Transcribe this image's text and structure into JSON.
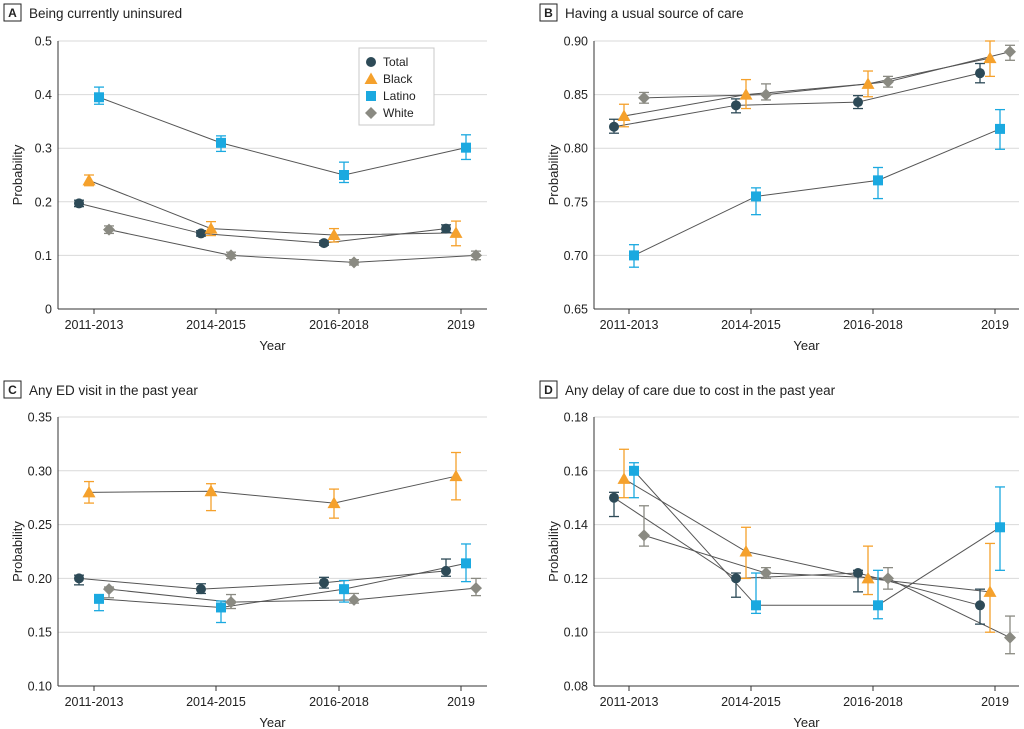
{
  "colors": {
    "Total": "#2d4a57",
    "Black": "#f5a12c",
    "Latino": "#1ba9e0",
    "White": "#8a8a82",
    "connector": "#555555",
    "grid": "#d9d9d9"
  },
  "chart_data": [
    {
      "type": "line",
      "letter": "A",
      "title": "Being currently uninsured",
      "xlabel": "Year",
      "ylabel": "Probability",
      "categories": [
        "2011-2013",
        "2014-2015",
        "2016-2018",
        "2019"
      ],
      "ylim": [
        0,
        0.5
      ],
      "yticks": [
        0,
        0.1,
        0.2,
        0.3,
        0.4,
        0.5
      ],
      "ytick_labels": [
        "0",
        "0.1",
        "0.2",
        "0.3",
        "0.4",
        "0.5"
      ],
      "grid": true,
      "legend": {
        "placement": "top-right",
        "entries": [
          "Total",
          "Black",
          "Latino",
          "White"
        ]
      },
      "series": [
        {
          "name": "Total",
          "marker": "circle",
          "values": [
            0.197,
            0.141,
            0.123,
            0.15
          ],
          "lower": [
            0.191,
            0.136,
            0.119,
            0.143
          ],
          "upper": [
            0.203,
            0.146,
            0.127,
            0.157
          ]
        },
        {
          "name": "Black",
          "marker": "triangle",
          "values": [
            0.24,
            0.15,
            0.138,
            0.142
          ],
          "lower": [
            0.23,
            0.137,
            0.125,
            0.118
          ],
          "upper": [
            0.25,
            0.163,
            0.15,
            0.164
          ]
        },
        {
          "name": "Latino",
          "marker": "square",
          "values": [
            0.395,
            0.31,
            0.25,
            0.301
          ],
          "lower": [
            0.382,
            0.294,
            0.236,
            0.279
          ],
          "upper": [
            0.414,
            0.323,
            0.274,
            0.325
          ]
        },
        {
          "name": "White",
          "marker": "diamond",
          "values": [
            0.148,
            0.1,
            0.087,
            0.1
          ],
          "lower": [
            0.141,
            0.094,
            0.082,
            0.092
          ],
          "upper": [
            0.155,
            0.106,
            0.092,
            0.108
          ]
        }
      ]
    },
    {
      "type": "line",
      "letter": "B",
      "title": "Having a usual source of care",
      "xlabel": "Year",
      "ylabel": "Probability",
      "categories": [
        "2011-2013",
        "2014-2015",
        "2016-2018",
        "2019"
      ],
      "ylim": [
        0.65,
        0.9
      ],
      "yticks": [
        0.65,
        0.7,
        0.75,
        0.8,
        0.85,
        0.9
      ],
      "ytick_labels": [
        "0.65",
        "0.70",
        "0.75",
        "0.80",
        "0.85",
        "0.90"
      ],
      "grid": true,
      "series": [
        {
          "name": "Total",
          "marker": "circle",
          "values": [
            0.82,
            0.84,
            0.843,
            0.87
          ],
          "lower": [
            0.814,
            0.833,
            0.837,
            0.861
          ],
          "upper": [
            0.827,
            0.846,
            0.849,
            0.879
          ]
        },
        {
          "name": "Black",
          "marker": "triangle",
          "values": [
            0.83,
            0.85,
            0.86,
            0.884
          ],
          "lower": [
            0.82,
            0.837,
            0.848,
            0.867
          ],
          "upper": [
            0.841,
            0.864,
            0.872,
            0.9
          ]
        },
        {
          "name": "Latino",
          "marker": "square",
          "values": [
            0.7,
            0.755,
            0.77,
            0.818
          ],
          "lower": [
            0.689,
            0.738,
            0.753,
            0.799
          ],
          "upper": [
            0.71,
            0.763,
            0.782,
            0.836
          ]
        },
        {
          "name": "White",
          "marker": "diamond",
          "values": [
            0.847,
            0.85,
            0.862,
            0.89
          ],
          "lower": [
            0.842,
            0.845,
            0.857,
            0.882
          ],
          "upper": [
            0.852,
            0.86,
            0.867,
            0.896
          ]
        }
      ]
    },
    {
      "type": "line",
      "letter": "C",
      "title": "Any ED visit in the past year",
      "xlabel": "Year",
      "ylabel": "Probability",
      "categories": [
        "2011-2013",
        "2014-2015",
        "2016-2018",
        "2019"
      ],
      "ylim": [
        0.1,
        0.35
      ],
      "yticks": [
        0.1,
        0.15,
        0.2,
        0.25,
        0.3,
        0.35
      ],
      "ytick_labels": [
        "0.10",
        "0.15",
        "0.20",
        "0.25",
        "0.30",
        "0.35"
      ],
      "grid": true,
      "series": [
        {
          "name": "Total",
          "marker": "circle",
          "values": [
            0.2,
            0.19,
            0.196,
            0.207
          ],
          "lower": [
            0.194,
            0.186,
            0.191,
            0.202
          ],
          "upper": [
            0.203,
            0.195,
            0.201,
            0.218
          ]
        },
        {
          "name": "Black",
          "marker": "triangle",
          "values": [
            0.28,
            0.281,
            0.27,
            0.295
          ],
          "lower": [
            0.27,
            0.263,
            0.256,
            0.273
          ],
          "upper": [
            0.29,
            0.288,
            0.283,
            0.317
          ]
        },
        {
          "name": "Latino",
          "marker": "square",
          "values": [
            0.181,
            0.173,
            0.19,
            0.214
          ],
          "lower": [
            0.17,
            0.159,
            0.178,
            0.197
          ],
          "upper": [
            0.183,
            0.179,
            0.198,
            0.232
          ]
        },
        {
          "name": "White",
          "marker": "diamond",
          "values": [
            0.19,
            0.178,
            0.18,
            0.191
          ],
          "lower": [
            0.182,
            0.172,
            0.177,
            0.184
          ],
          "upper": [
            0.192,
            0.185,
            0.186,
            0.2
          ]
        }
      ]
    },
    {
      "type": "line",
      "letter": "D",
      "title": "Any delay of care due to cost in the past year",
      "xlabel": "Year",
      "ylabel": "Probability",
      "categories": [
        "2011-2013",
        "2014-2015",
        "2016-2018",
        "2019"
      ],
      "ylim": [
        0.08,
        0.18
      ],
      "yticks": [
        0.08,
        0.1,
        0.12,
        0.14,
        0.16,
        0.18
      ],
      "ytick_labels": [
        "0.08",
        "0.10",
        "0.12",
        "0.14",
        "0.16",
        "0.18"
      ],
      "grid": true,
      "series": [
        {
          "name": "Total",
          "marker": "circle",
          "values": [
            0.15,
            0.12,
            0.122,
            0.11
          ],
          "lower": [
            0.143,
            0.113,
            0.115,
            0.103
          ],
          "upper": [
            0.152,
            0.122,
            0.123,
            0.116
          ]
        },
        {
          "name": "Black",
          "marker": "triangle",
          "values": [
            0.157,
            0.13,
            0.12,
            0.115
          ],
          "lower": [
            0.15,
            0.12,
            0.114,
            0.1
          ],
          "upper": [
            0.168,
            0.139,
            0.132,
            0.133
          ]
        },
        {
          "name": "Latino",
          "marker": "square",
          "values": [
            0.16,
            0.11,
            0.11,
            0.139
          ],
          "lower": [
            0.15,
            0.107,
            0.105,
            0.123
          ],
          "upper": [
            0.163,
            0.122,
            0.123,
            0.154
          ]
        },
        {
          "name": "White",
          "marker": "diamond",
          "values": [
            0.136,
            0.122,
            0.12,
            0.098
          ],
          "lower": [
            0.132,
            0.12,
            0.116,
            0.092
          ],
          "upper": [
            0.147,
            0.124,
            0.124,
            0.106
          ]
        }
      ]
    }
  ]
}
